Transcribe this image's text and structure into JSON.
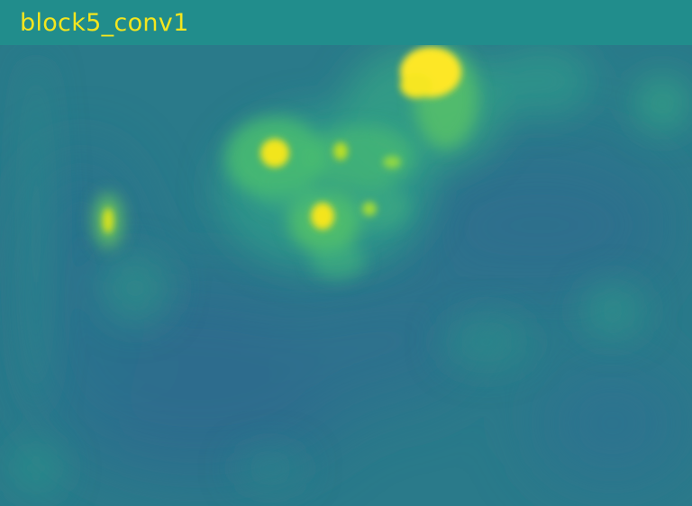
{
  "title": "block5_conv1",
  "colors": {
    "title_text": "#f4e61e",
    "header_band": "#218e8d",
    "map_base": "#2a7a8a",
    "map_low": "#2d6e8e",
    "map_mid": "#35a087",
    "map_high": "#7ad151",
    "map_peak": "#fde725"
  },
  "colormap": "viridis"
}
